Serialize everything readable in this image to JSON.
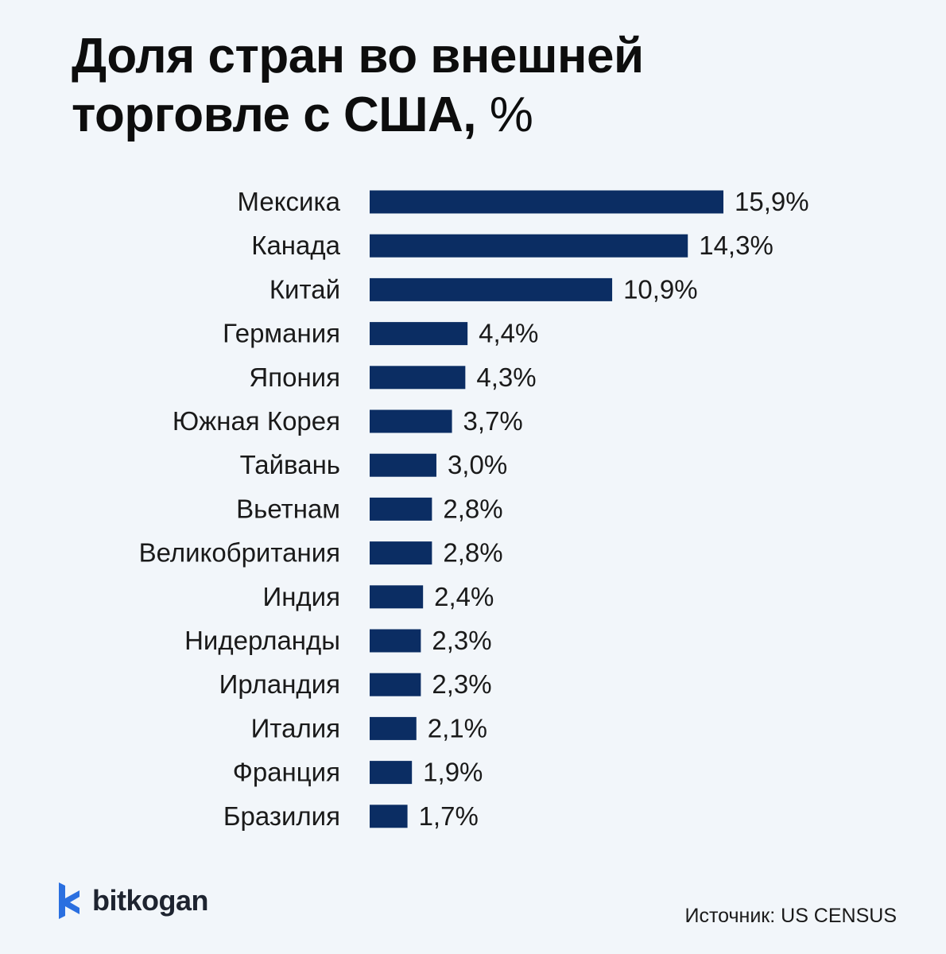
{
  "title": {
    "bold": "Доля стран во внешней торговле с США,",
    "unit": "%"
  },
  "chart_data": {
    "type": "bar",
    "orientation": "horizontal",
    "title": "Доля стран во внешней торговле с США, %",
    "categories": [
      "Мексика",
      "Канада",
      "Китай",
      "Германия",
      "Япония",
      "Южная Корея",
      "Тайвань",
      "Вьетнам",
      "Великобритания",
      "Индия",
      "Нидерланды",
      "Ирландия",
      "Италия",
      "Франция",
      "Бразилия"
    ],
    "values": [
      15.9,
      14.3,
      10.9,
      4.4,
      4.3,
      3.7,
      3.0,
      2.8,
      2.8,
      2.4,
      2.3,
      2.3,
      2.1,
      1.9,
      1.7
    ],
    "value_labels": [
      "15,9%",
      "14,3%",
      "10,9%",
      "4,4%",
      "4,3%",
      "3,7%",
      "3,0%",
      "2,8%",
      "2,8%",
      "2,4%",
      "2,3%",
      "2,3%",
      "2,1%",
      "1,9%",
      "1,7%"
    ],
    "xlabel": "",
    "ylabel": "",
    "grid": false,
    "bar_color": "#0b2d63"
  },
  "footer": {
    "brand": "bitkogan",
    "source": "Источник: US CENSUS"
  },
  "colors": {
    "background": "#f2f6fa",
    "bar": "#0b2d63",
    "logo_blue": "#2a6fe0"
  }
}
